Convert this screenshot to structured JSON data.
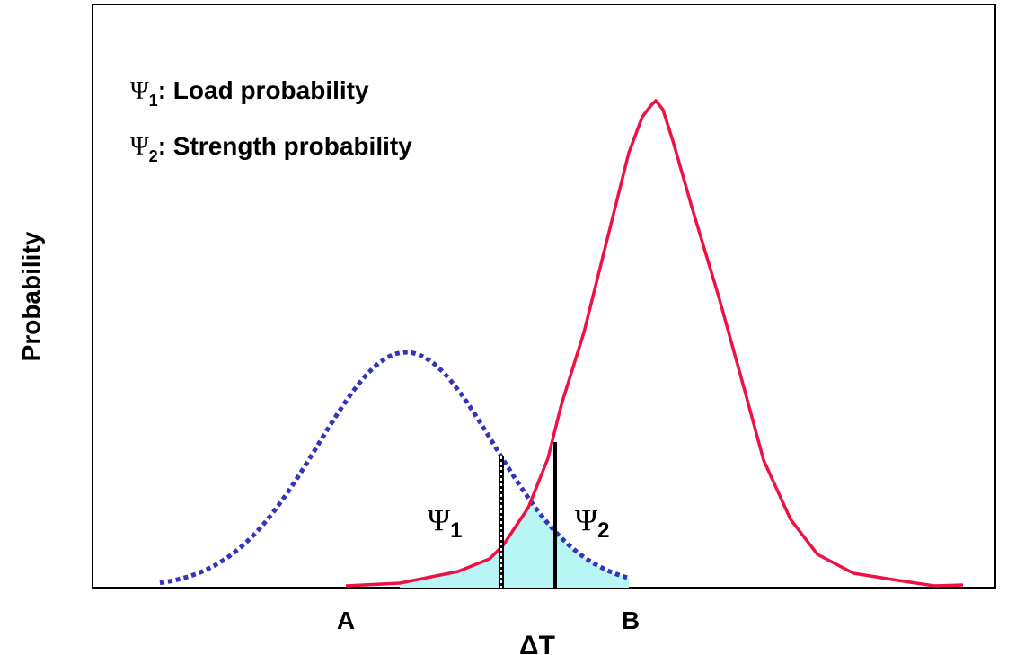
{
  "legend": [
    {
      "symbol": "Ψ",
      "subscript": "1",
      "text": ": Load probability"
    },
    {
      "symbol": "Ψ",
      "subscript": "2",
      "text": ": Strength probability"
    }
  ],
  "axis_label_y": "Probability",
  "axis_label_x": "ΔT",
  "points": {
    "a": "A",
    "b": "B"
  },
  "markers": [
    {
      "symbol": "Ψ",
      "subscript": "1"
    },
    {
      "symbol": "Ψ",
      "subscript": "2"
    }
  ]
}
